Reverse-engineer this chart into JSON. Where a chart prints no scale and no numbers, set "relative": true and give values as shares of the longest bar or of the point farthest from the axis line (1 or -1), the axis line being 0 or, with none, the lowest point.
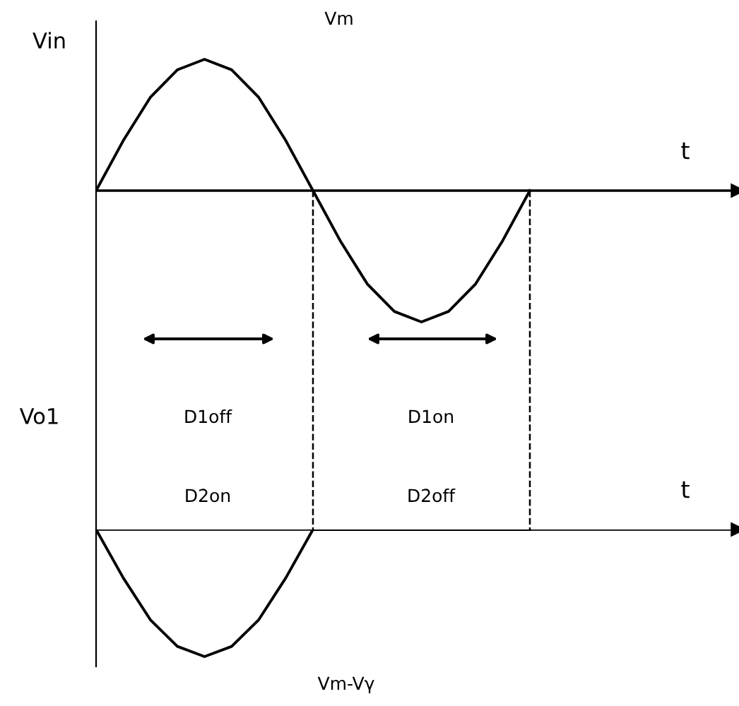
{
  "chart_data": [
    {
      "type": "line",
      "relative": true,
      "ylabel": "Vin",
      "xlabel": "t",
      "categories": [
        null,
        null,
        null,
        null,
        null,
        null,
        null,
        null,
        null,
        null,
        null,
        null,
        null,
        null,
        null,
        null,
        null
      ],
      "series": [
        {
          "color": "#000000",
          "values": [
            0,
            0.38,
            0.71,
            0.92,
            1,
            0.92,
            0.71,
            0.38,
            0,
            -0.38,
            -0.71,
            -0.92,
            -1,
            -0.92,
            -0.71,
            -0.38,
            0
          ]
        }
      ],
      "annotations": [
        "Vm",
        "D1off",
        "D2on",
        "D1on",
        "D2off"
      ],
      "legend": false,
      "marker": "none",
      "line_style": "solid"
    },
    {
      "type": "line",
      "relative": true,
      "ylabel": "Vo1",
      "xlabel": "t",
      "categories": [
        null,
        null,
        null,
        null,
        null,
        null,
        null,
        null,
        null,
        null,
        null,
        null,
        null,
        null,
        null,
        null,
        null
      ],
      "series": [
        {
          "color": "#000000",
          "values": [
            0,
            -0.38,
            -0.71,
            -0.92,
            -1,
            -0.92,
            -0.71,
            -0.38,
            0,
            0,
            0,
            0,
            0,
            0,
            0,
            0,
            0
          ]
        }
      ],
      "annotations": [
        "Vm-Vγ"
      ],
      "legend": false,
      "marker": "none",
      "line_style": "solid"
    }
  ]
}
